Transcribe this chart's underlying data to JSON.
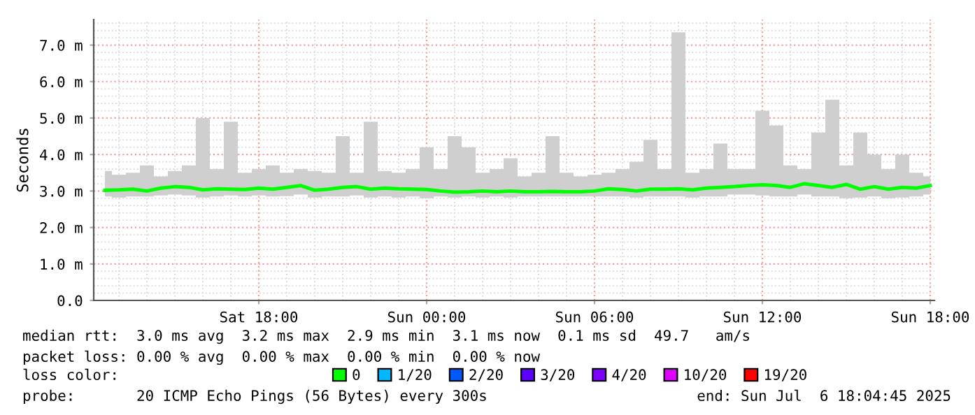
{
  "chart_data": {
    "type": "line",
    "ylabel": "Seconds",
    "legend_title": "loss color:",
    "x": [
      "2025-07-05T12:30",
      "2025-07-05T13:00",
      "2025-07-05T13:30",
      "2025-07-05T14:00",
      "2025-07-05T14:30",
      "2025-07-05T15:00",
      "2025-07-05T15:30",
      "2025-07-05T16:00",
      "2025-07-05T16:30",
      "2025-07-05T17:00",
      "2025-07-05T17:30",
      "2025-07-05T18:00",
      "2025-07-05T18:30",
      "2025-07-05T19:00",
      "2025-07-05T19:30",
      "2025-07-05T20:00",
      "2025-07-05T20:30",
      "2025-07-05T21:00",
      "2025-07-05T21:30",
      "2025-07-05T22:00",
      "2025-07-05T22:30",
      "2025-07-05T23:00",
      "2025-07-05T23:30",
      "2025-07-06T00:00",
      "2025-07-06T00:30",
      "2025-07-06T01:00",
      "2025-07-06T01:30",
      "2025-07-06T02:00",
      "2025-07-06T02:30",
      "2025-07-06T03:00",
      "2025-07-06T03:30",
      "2025-07-06T04:00",
      "2025-07-06T04:30",
      "2025-07-06T05:00",
      "2025-07-06T05:30",
      "2025-07-06T06:00",
      "2025-07-06T06:30",
      "2025-07-06T07:00",
      "2025-07-06T07:30",
      "2025-07-06T08:00",
      "2025-07-06T08:30",
      "2025-07-06T09:00",
      "2025-07-06T09:30",
      "2025-07-06T10:00",
      "2025-07-06T10:30",
      "2025-07-06T11:00",
      "2025-07-06T11:30",
      "2025-07-06T12:00",
      "2025-07-06T12:30",
      "2025-07-06T13:00",
      "2025-07-06T13:30",
      "2025-07-06T14:00",
      "2025-07-06T14:30",
      "2025-07-06T15:00",
      "2025-07-06T15:30",
      "2025-07-06T16:00",
      "2025-07-06T16:30",
      "2025-07-06T17:00",
      "2025-07-06T17:30",
      "2025-07-06T18:00"
    ],
    "series": [
      {
        "name": "0",
        "color": "#00ff00",
        "values": [
          3.02,
          3.03,
          3.05,
          3.0,
          3.08,
          3.12,
          3.1,
          3.03,
          3.06,
          3.05,
          3.04,
          3.08,
          3.05,
          3.1,
          3.15,
          3.02,
          3.05,
          3.1,
          3.12,
          3.05,
          3.08,
          3.06,
          3.05,
          3.04,
          3.0,
          2.97,
          2.98,
          3.0,
          2.98,
          3.0,
          2.98,
          2.98,
          2.99,
          2.98,
          2.98,
          3.0,
          3.06,
          3.04,
          3.0,
          3.05,
          3.05,
          3.06,
          3.03,
          3.08,
          3.1,
          3.12,
          3.15,
          3.17,
          3.15,
          3.1,
          3.2,
          3.15,
          3.1,
          3.18,
          3.05,
          3.12,
          3.05,
          3.1,
          3.08,
          3.15
        ],
        "lower": [
          2.85,
          2.82,
          2.85,
          2.85,
          2.88,
          2.9,
          2.88,
          2.82,
          2.85,
          2.88,
          2.85,
          2.88,
          2.85,
          2.86,
          2.9,
          2.82,
          2.85,
          2.85,
          2.88,
          2.82,
          2.85,
          2.82,
          2.85,
          2.8,
          2.85,
          2.82,
          2.85,
          2.82,
          2.85,
          2.82,
          2.85,
          2.85,
          2.85,
          2.85,
          2.85,
          2.85,
          2.85,
          2.85,
          2.82,
          2.85,
          2.85,
          2.85,
          2.82,
          2.85,
          2.85,
          2.9,
          2.9,
          2.88,
          2.85,
          2.85,
          2.9,
          2.85,
          2.85,
          2.8,
          2.82,
          2.85,
          2.8,
          2.82,
          2.85,
          2.9
        ],
        "upper": [
          3.55,
          3.45,
          3.5,
          3.7,
          3.4,
          3.55,
          3.7,
          5.0,
          3.6,
          4.9,
          3.5,
          3.6,
          3.7,
          3.5,
          3.6,
          3.55,
          3.5,
          4.5,
          3.5,
          4.9,
          3.55,
          3.5,
          3.6,
          4.2,
          3.6,
          4.5,
          4.2,
          3.5,
          3.6,
          3.9,
          3.4,
          3.5,
          4.5,
          3.5,
          3.4,
          3.45,
          3.5,
          3.6,
          3.8,
          4.4,
          3.6,
          7.35,
          3.5,
          3.6,
          4.3,
          3.6,
          3.6,
          5.2,
          4.8,
          3.7,
          3.6,
          4.6,
          5.5,
          3.7,
          4.6,
          4.0,
          3.6,
          4.0,
          3.5,
          3.4
        ]
      },
      {
        "name": "1/20",
        "color": "#00b8ff",
        "values": [
          null,
          null,
          null,
          null,
          null,
          null,
          null,
          null,
          null,
          null,
          null,
          null,
          null,
          null,
          null,
          null,
          null,
          null,
          null,
          null,
          null,
          null,
          null,
          null,
          null,
          null,
          null,
          null,
          null,
          null,
          null,
          null,
          null,
          null,
          null,
          null,
          null,
          null,
          null,
          null,
          null,
          null,
          null,
          null,
          null,
          null,
          null,
          null,
          null,
          null,
          null,
          null,
          null,
          null,
          null,
          null,
          null,
          null,
          null,
          null
        ]
      },
      {
        "name": "2/20",
        "color": "#0059ff",
        "values": [
          null,
          null,
          null,
          null,
          null,
          null,
          null,
          null,
          null,
          null,
          null,
          null,
          null,
          null,
          null,
          null,
          null,
          null,
          null,
          null,
          null,
          null,
          null,
          null,
          null,
          null,
          null,
          null,
          null,
          null,
          null,
          null,
          null,
          null,
          null,
          null,
          null,
          null,
          null,
          null,
          null,
          null,
          null,
          null,
          null,
          null,
          null,
          null,
          null,
          null,
          null,
          null,
          null,
          null,
          null,
          null,
          null,
          null,
          null,
          null
        ]
      },
      {
        "name": "3/20",
        "color": "#5e00ff",
        "values": [
          null,
          null,
          null,
          null,
          null,
          null,
          null,
          null,
          null,
          null,
          null,
          null,
          null,
          null,
          null,
          null,
          null,
          null,
          null,
          null,
          null,
          null,
          null,
          null,
          null,
          null,
          null,
          null,
          null,
          null,
          null,
          null,
          null,
          null,
          null,
          null,
          null,
          null,
          null,
          null,
          null,
          null,
          null,
          null,
          null,
          null,
          null,
          null,
          null,
          null,
          null,
          null,
          null,
          null,
          null,
          null,
          null,
          null,
          null,
          null
        ]
      },
      {
        "name": "4/20",
        "color": "#7e00ff",
        "values": [
          null,
          null,
          null,
          null,
          null,
          null,
          null,
          null,
          null,
          null,
          null,
          null,
          null,
          null,
          null,
          null,
          null,
          null,
          null,
          null,
          null,
          null,
          null,
          null,
          null,
          null,
          null,
          null,
          null,
          null,
          null,
          null,
          null,
          null,
          null,
          null,
          null,
          null,
          null,
          null,
          null,
          null,
          null,
          null,
          null,
          null,
          null,
          null,
          null,
          null,
          null,
          null,
          null,
          null,
          null,
          null,
          null,
          null,
          null,
          null
        ]
      },
      {
        "name": "10/20",
        "color": "#dd00ff",
        "values": [
          null,
          null,
          null,
          null,
          null,
          null,
          null,
          null,
          null,
          null,
          null,
          null,
          null,
          null,
          null,
          null,
          null,
          null,
          null,
          null,
          null,
          null,
          null,
          null,
          null,
          null,
          null,
          null,
          null,
          null,
          null,
          null,
          null,
          null,
          null,
          null,
          null,
          null,
          null,
          null,
          null,
          null,
          null,
          null,
          null,
          null,
          null,
          null,
          null,
          null,
          null,
          null,
          null,
          null,
          null,
          null,
          null,
          null,
          null,
          null
        ]
      },
      {
        "name": "19/20",
        "color": "#ff0000",
        "values": [
          null,
          null,
          null,
          null,
          null,
          null,
          null,
          null,
          null,
          null,
          null,
          null,
          null,
          null,
          null,
          null,
          null,
          null,
          null,
          null,
          null,
          null,
          null,
          null,
          null,
          null,
          null,
          null,
          null,
          null,
          null,
          null,
          null,
          null,
          null,
          null,
          null,
          null,
          null,
          null,
          null,
          null,
          null,
          null,
          null,
          null,
          null,
          null,
          null,
          null,
          null,
          null,
          null,
          null,
          null,
          null,
          null,
          null,
          null,
          null
        ]
      }
    ],
    "xlim": [
      "2025-07-05T12:06",
      "2025-07-06T18:09"
    ],
    "xticks": [
      {
        "value": "2025-07-05T18:00",
        "label": "Sat 18:00"
      },
      {
        "value": "2025-07-06T00:00",
        "label": "Sun 00:00"
      },
      {
        "value": "2025-07-06T06:00",
        "label": "Sun 06:00"
      },
      {
        "value": "2025-07-06T12:00",
        "label": "Sun 12:00"
      },
      {
        "value": "2025-07-06T18:00",
        "label": "Sun 18:00"
      }
    ],
    "ylim": [
      0,
      7.7
    ],
    "yticks": [
      {
        "value": 0,
        "label": "0.0"
      },
      {
        "value": 1,
        "label": "1.0 m"
      },
      {
        "value": 2,
        "label": "2.0 m"
      },
      {
        "value": 3,
        "label": "3.0 m"
      },
      {
        "value": 4,
        "label": "4.0 m"
      },
      {
        "value": 5,
        "label": "5.0 m"
      },
      {
        "value": 6,
        "label": "6.0 m"
      },
      {
        "value": 7,
        "label": "7.0 m"
      }
    ],
    "grid": true,
    "legend": "bottom",
    "line_style": "solid",
    "annotations": [
      "median rtt:  3.0 ms avg  3.2 ms max  2.9 ms min  3.1 ms now  0.1 ms sd  49.7   am/s",
      "packet loss: 0.00 % avg  0.00 % max  0.00 % min  0.00 % now",
      "probe:       20 ICMP Echo Pings (56 Bytes) every 300s",
      "end: Sun Jul  6 18:04:45 2025"
    ]
  }
}
